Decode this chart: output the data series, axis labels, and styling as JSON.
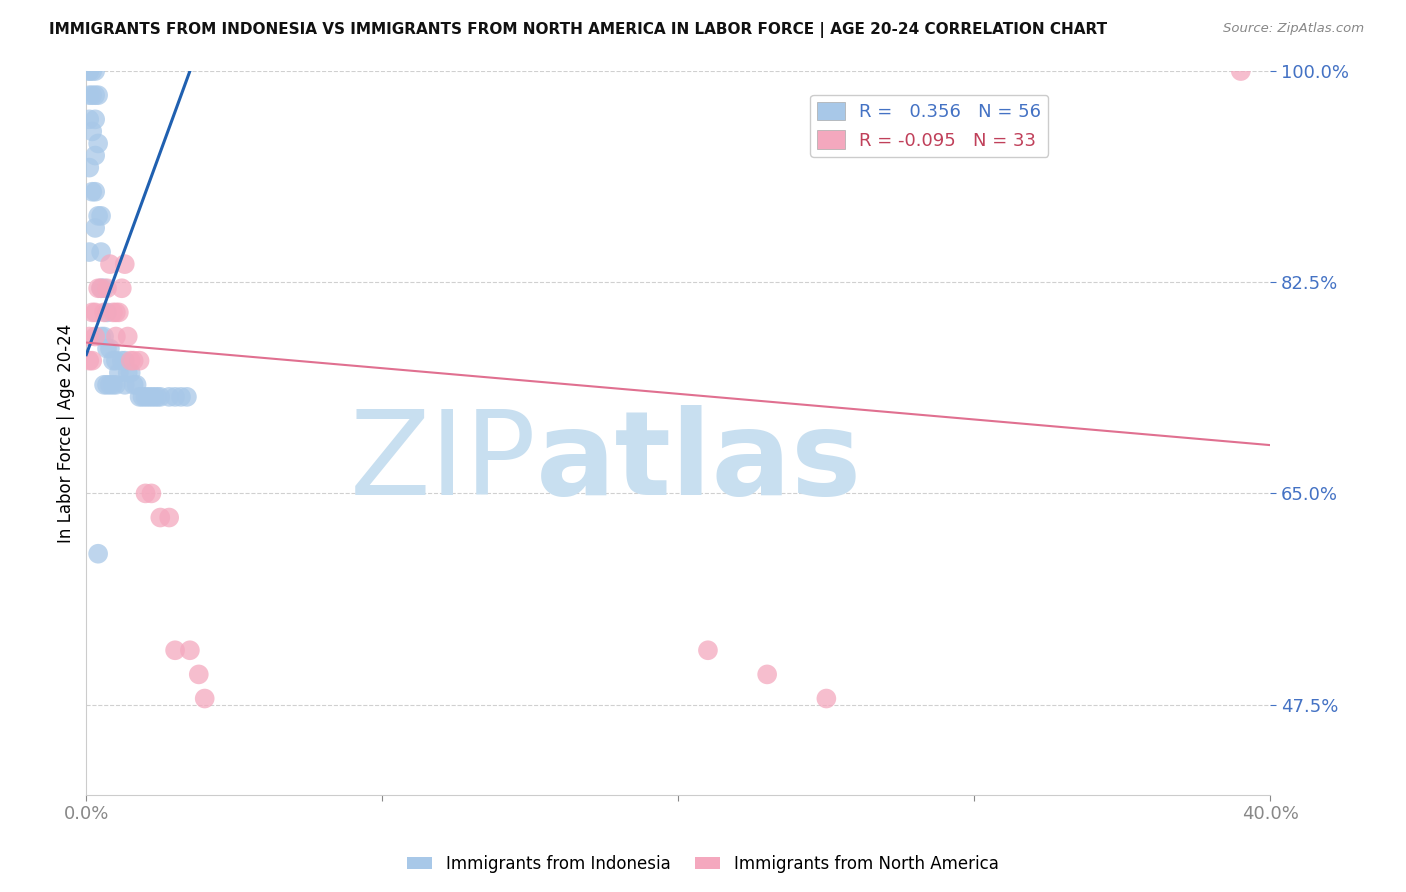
{
  "title": "IMMIGRANTS FROM INDONESIA VS IMMIGRANTS FROM NORTH AMERICA IN LABOR FORCE | AGE 20-24 CORRELATION CHART",
  "source": "Source: ZipAtlas.com",
  "ylabel": "In Labor Force | Age 20-24",
  "blue_label": "Immigrants from Indonesia",
  "pink_label": "Immigrants from North America",
  "blue_R": 0.356,
  "blue_N": 56,
  "pink_R": -0.095,
  "pink_N": 33,
  "xlim": [
    0.0,
    0.4
  ],
  "ylim": [
    0.4,
    1.0
  ],
  "yticks": [
    0.475,
    0.65,
    0.825,
    1.0
  ],
  "ytick_labels": [
    "47.5%",
    "65.0%",
    "82.5%",
    "100.0%"
  ],
  "xtick_positions": [
    0.0,
    0.1,
    0.2,
    0.3,
    0.4
  ],
  "xtick_labels": [
    "0.0%",
    "",
    "",
    "",
    "40.0%"
  ],
  "blue_color": "#a8c8e8",
  "pink_color": "#f4a8be",
  "blue_line_color": "#2060b0",
  "pink_line_color": "#e07090",
  "blue_x": [
    0.001,
    0.001,
    0.001,
    0.001,
    0.001,
    0.002,
    0.002,
    0.002,
    0.003,
    0.003,
    0.003,
    0.003,
    0.003,
    0.003,
    0.004,
    0.004,
    0.004,
    0.005,
    0.005,
    0.005,
    0.005,
    0.006,
    0.006,
    0.006,
    0.007,
    0.007,
    0.007,
    0.008,
    0.008,
    0.009,
    0.009,
    0.01,
    0.01,
    0.011,
    0.012,
    0.013,
    0.013,
    0.014,
    0.015,
    0.016,
    0.017,
    0.018,
    0.019,
    0.02,
    0.021,
    0.022,
    0.023,
    0.024,
    0.025,
    0.028,
    0.03,
    0.032,
    0.034,
    0.001,
    0.002,
    0.004
  ],
  "blue_y": [
    0.96,
    0.98,
    1.0,
    1.0,
    0.92,
    1.0,
    0.98,
    0.95,
    1.0,
    0.98,
    0.96,
    0.93,
    0.9,
    0.87,
    0.98,
    0.94,
    0.88,
    0.88,
    0.85,
    0.82,
    0.78,
    0.82,
    0.78,
    0.74,
    0.8,
    0.77,
    0.74,
    0.77,
    0.74,
    0.76,
    0.74,
    0.76,
    0.74,
    0.75,
    0.76,
    0.76,
    0.74,
    0.75,
    0.75,
    0.74,
    0.74,
    0.73,
    0.73,
    0.73,
    0.73,
    0.73,
    0.73,
    0.73,
    0.73,
    0.73,
    0.73,
    0.73,
    0.73,
    0.85,
    0.9,
    0.6
  ],
  "pink_x": [
    0.001,
    0.001,
    0.002,
    0.002,
    0.003,
    0.003,
    0.004,
    0.005,
    0.006,
    0.007,
    0.008,
    0.009,
    0.01,
    0.01,
    0.011,
    0.012,
    0.013,
    0.014,
    0.015,
    0.016,
    0.018,
    0.02,
    0.022,
    0.025,
    0.028,
    0.03,
    0.035,
    0.038,
    0.04,
    0.39,
    0.21,
    0.23,
    0.25
  ],
  "pink_y": [
    0.76,
    0.78,
    0.8,
    0.76,
    0.78,
    0.8,
    0.82,
    0.82,
    0.8,
    0.82,
    0.84,
    0.8,
    0.8,
    0.78,
    0.8,
    0.82,
    0.84,
    0.78,
    0.76,
    0.76,
    0.76,
    0.65,
    0.65,
    0.63,
    0.63,
    0.52,
    0.52,
    0.5,
    0.48,
    1.0,
    0.52,
    0.5,
    0.48
  ],
  "blue_line_x": [
    0.0,
    0.035
  ],
  "blue_line_y": [
    0.765,
    1.0
  ],
  "pink_line_x": [
    0.0,
    0.4
  ],
  "pink_line_y": [
    0.775,
    0.69
  ],
  "watermark_zip_color": "#c8dff0",
  "watermark_atlas_color": "#c8dff0",
  "background_color": "#ffffff"
}
